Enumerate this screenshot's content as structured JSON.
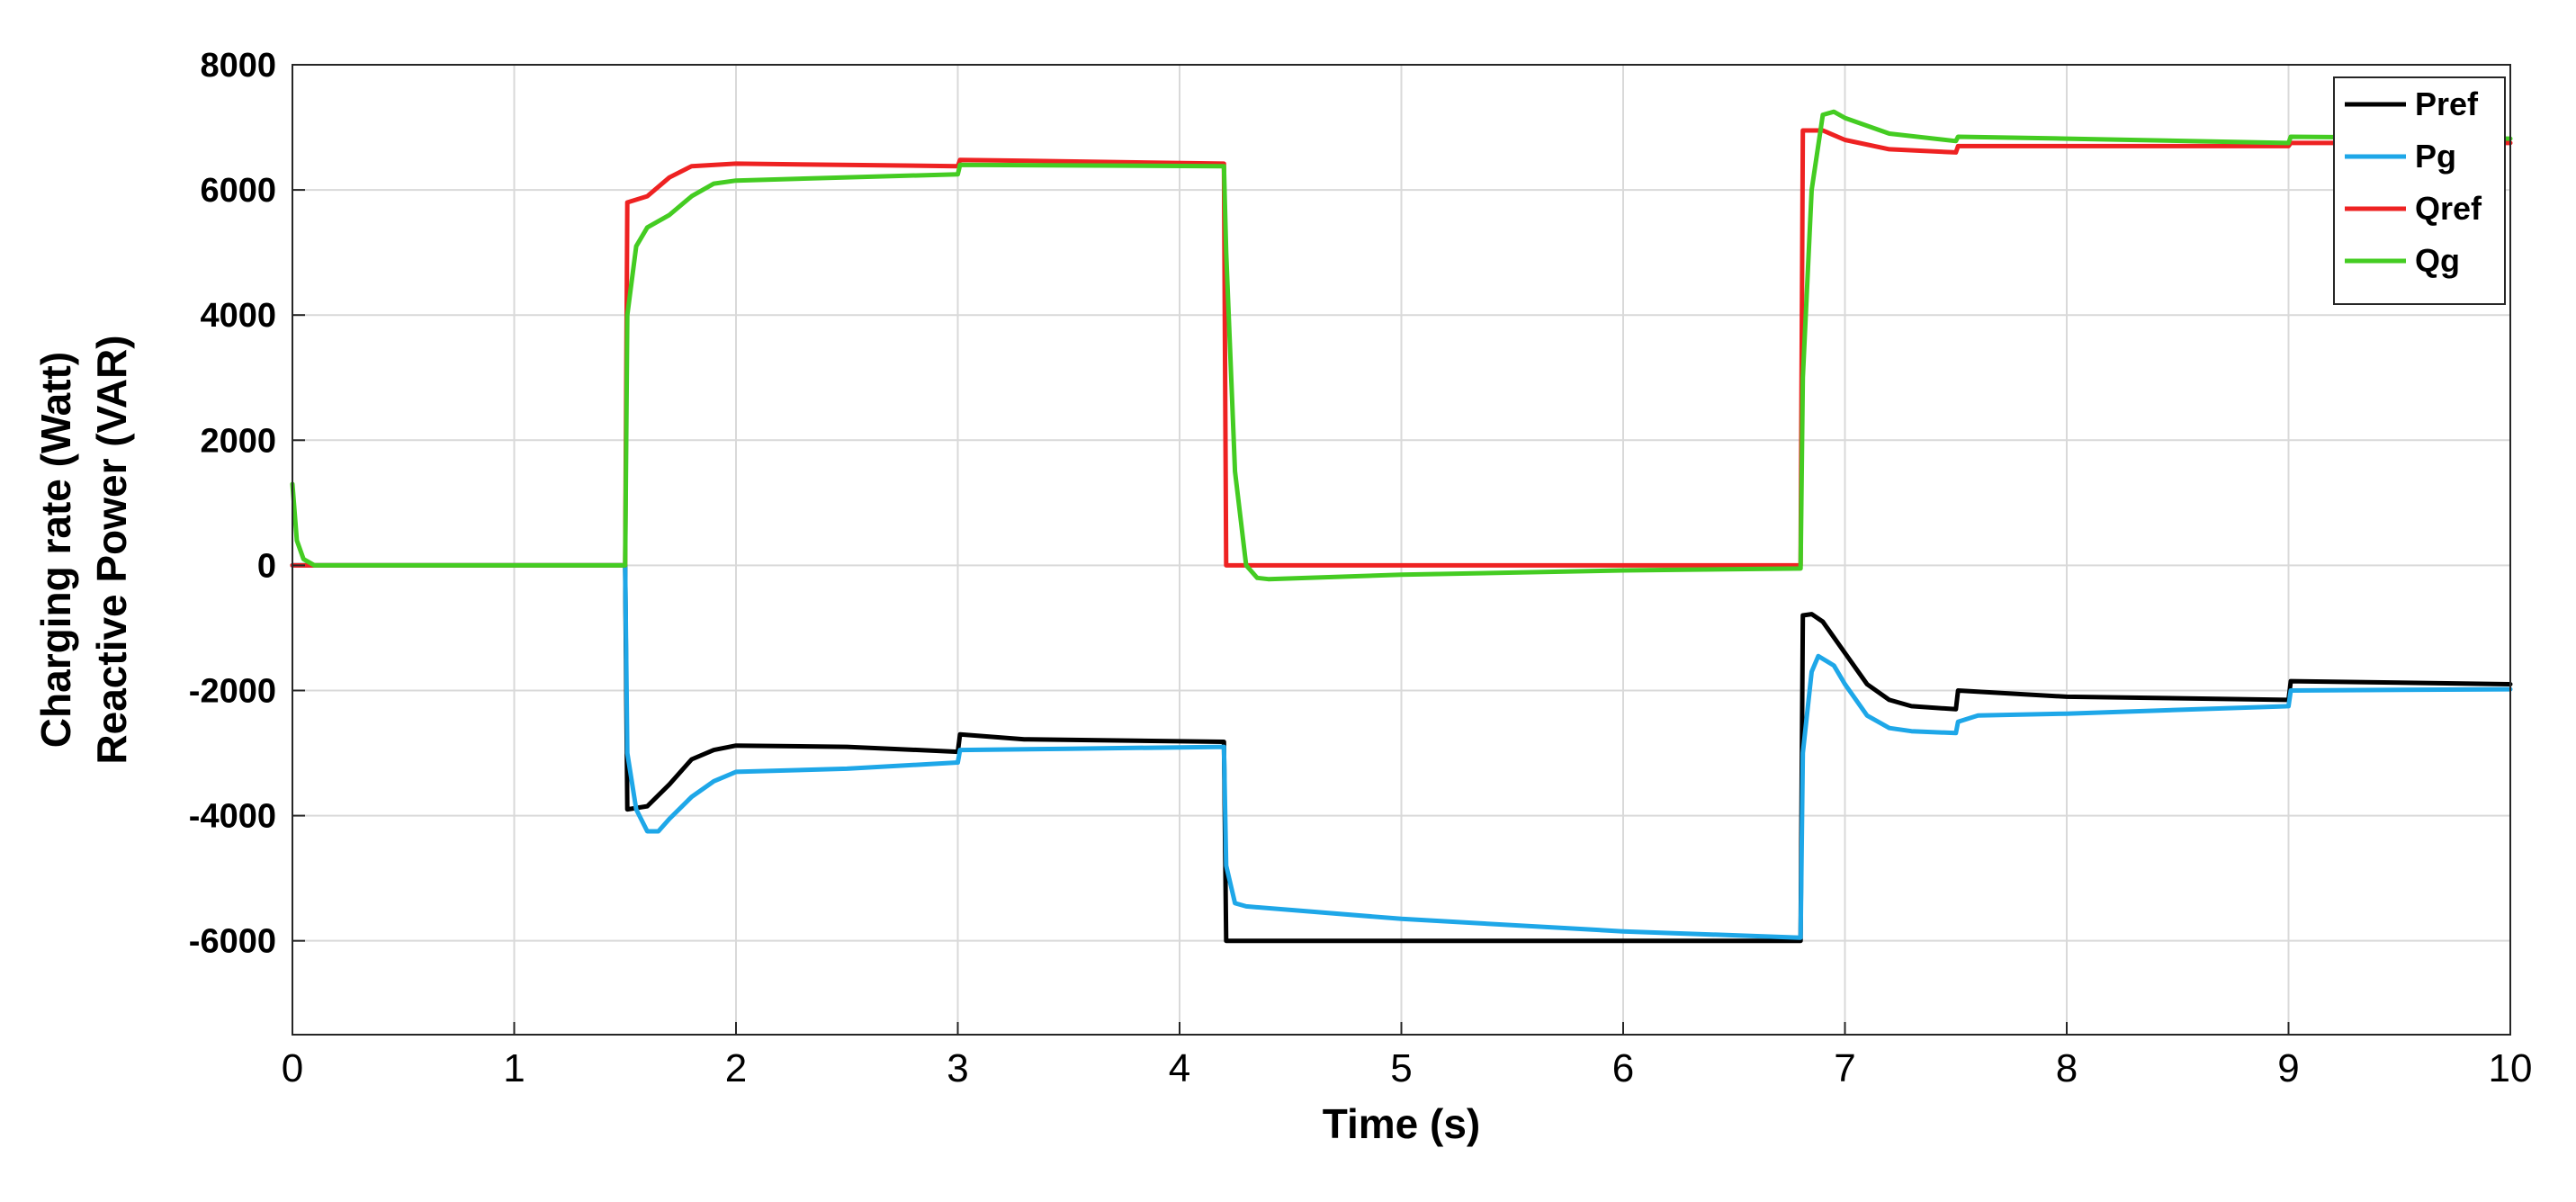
{
  "chart_data": {
    "type": "line",
    "title": "",
    "xlabel": "Time (s)",
    "ylabel_lines": [
      "Charging rate (Watt)",
      "Reactive Power (VAR)"
    ],
    "xlim": [
      0,
      10
    ],
    "ylim": [
      -7500,
      8000
    ],
    "xticks": [
      0,
      1,
      2,
      3,
      4,
      5,
      6,
      7,
      8,
      9,
      10
    ],
    "xtick_labels": [
      "0",
      "1",
      "2",
      "3",
      "4",
      "5",
      "6",
      "7",
      "8",
      "9",
      "10"
    ],
    "yticks": [
      -6000,
      -4000,
      -2000,
      0,
      2000,
      4000,
      6000,
      8000
    ],
    "ytick_labels": [
      "-6000",
      "-4000",
      "-2000",
      "0",
      "2000",
      "4000",
      "6000",
      "8000"
    ],
    "grid": true,
    "legend_position": "top-right",
    "series": [
      {
        "name": "Pref",
        "color": "#000000",
        "points": [
          [
            0,
            0
          ],
          [
            1.5,
            0
          ],
          [
            1.51,
            -3900
          ],
          [
            1.6,
            -3850
          ],
          [
            1.7,
            -3500
          ],
          [
            1.8,
            -3100
          ],
          [
            1.9,
            -2950
          ],
          [
            2.0,
            -2880
          ],
          [
            2.5,
            -2900
          ],
          [
            3.0,
            -2980
          ],
          [
            3.01,
            -2700
          ],
          [
            3.3,
            -2780
          ],
          [
            4.2,
            -2820
          ],
          [
            4.21,
            -6000
          ],
          [
            6.8,
            -6000
          ],
          [
            6.81,
            -800
          ],
          [
            6.85,
            -780
          ],
          [
            6.9,
            -900
          ],
          [
            7.0,
            -1400
          ],
          [
            7.1,
            -1900
          ],
          [
            7.2,
            -2150
          ],
          [
            7.3,
            -2250
          ],
          [
            7.5,
            -2300
          ],
          [
            7.51,
            -2000
          ],
          [
            8.0,
            -2100
          ],
          [
            9.0,
            -2150
          ],
          [
            9.01,
            -1850
          ],
          [
            10.0,
            -1900
          ]
        ]
      },
      {
        "name": "Pg",
        "color": "#1ea7e8",
        "points": [
          [
            0,
            0
          ],
          [
            1.5,
            0
          ],
          [
            1.51,
            -3000
          ],
          [
            1.55,
            -3900
          ],
          [
            1.6,
            -4250
          ],
          [
            1.65,
            -4250
          ],
          [
            1.7,
            -4050
          ],
          [
            1.8,
            -3700
          ],
          [
            1.9,
            -3450
          ],
          [
            2.0,
            -3300
          ],
          [
            2.5,
            -3250
          ],
          [
            3.0,
            -3150
          ],
          [
            3.01,
            -2950
          ],
          [
            3.5,
            -2930
          ],
          [
            4.2,
            -2900
          ],
          [
            4.21,
            -4800
          ],
          [
            4.25,
            -5400
          ],
          [
            4.3,
            -5450
          ],
          [
            5.0,
            -5650
          ],
          [
            6.0,
            -5850
          ],
          [
            6.8,
            -5950
          ],
          [
            6.81,
            -3000
          ],
          [
            6.85,
            -1700
          ],
          [
            6.88,
            -1450
          ],
          [
            6.95,
            -1600
          ],
          [
            7.0,
            -1900
          ],
          [
            7.1,
            -2400
          ],
          [
            7.2,
            -2600
          ],
          [
            7.3,
            -2650
          ],
          [
            7.5,
            -2680
          ],
          [
            7.51,
            -2500
          ],
          [
            7.6,
            -2400
          ],
          [
            8.0,
            -2370
          ],
          [
            9.0,
            -2250
          ],
          [
            9.01,
            -2000
          ],
          [
            10.0,
            -1980
          ]
        ]
      },
      {
        "name": "Qref",
        "color": "#ee2222",
        "points": [
          [
            0,
            0
          ],
          [
            1.5,
            0
          ],
          [
            1.51,
            5800
          ],
          [
            1.6,
            5900
          ],
          [
            1.7,
            6200
          ],
          [
            1.8,
            6380
          ],
          [
            2.0,
            6420
          ],
          [
            3.0,
            6380
          ],
          [
            3.01,
            6480
          ],
          [
            4.2,
            6420
          ],
          [
            4.21,
            0
          ],
          [
            6.8,
            0
          ],
          [
            6.81,
            6950
          ],
          [
            6.9,
            6950
          ],
          [
            7.0,
            6800
          ],
          [
            7.2,
            6650
          ],
          [
            7.5,
            6600
          ],
          [
            7.51,
            6700
          ],
          [
            8.0,
            6700
          ],
          [
            9.0,
            6700
          ],
          [
            9.01,
            6750
          ],
          [
            10.0,
            6750
          ]
        ]
      },
      {
        "name": "Qg",
        "color": "#44cc22",
        "points": [
          [
            0,
            1300
          ],
          [
            0.02,
            400
          ],
          [
            0.05,
            100
          ],
          [
            0.1,
            0
          ],
          [
            1.5,
            0
          ],
          [
            1.51,
            4000
          ],
          [
            1.55,
            5100
          ],
          [
            1.6,
            5400
          ],
          [
            1.7,
            5600
          ],
          [
            1.8,
            5900
          ],
          [
            1.9,
            6100
          ],
          [
            2.0,
            6150
          ],
          [
            3.0,
            6250
          ],
          [
            3.01,
            6400
          ],
          [
            4.2,
            6380
          ],
          [
            4.21,
            5000
          ],
          [
            4.25,
            1500
          ],
          [
            4.3,
            0
          ],
          [
            4.35,
            -200
          ],
          [
            4.4,
            -220
          ],
          [
            5.0,
            -150
          ],
          [
            6.0,
            -80
          ],
          [
            6.8,
            -50
          ],
          [
            6.81,
            3000
          ],
          [
            6.85,
            6000
          ],
          [
            6.9,
            7200
          ],
          [
            6.95,
            7250
          ],
          [
            7.0,
            7150
          ],
          [
            7.2,
            6900
          ],
          [
            7.5,
            6780
          ],
          [
            7.51,
            6850
          ],
          [
            8.0,
            6820
          ],
          [
            9.0,
            6750
          ],
          [
            9.01,
            6850
          ],
          [
            10.0,
            6820
          ]
        ]
      }
    ]
  }
}
